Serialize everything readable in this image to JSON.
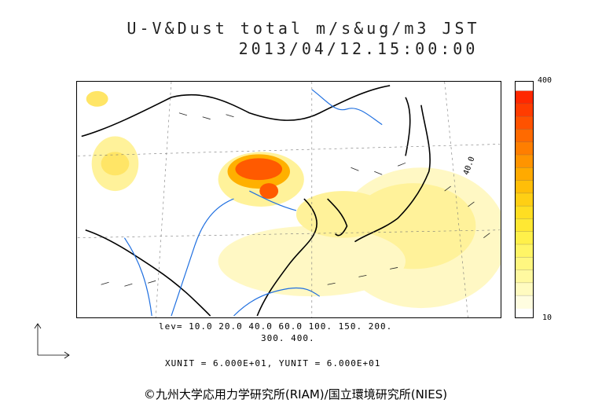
{
  "title_line1": "U-V&Dust total m/s&ug/m3 JST",
  "title_line2": "2013/04/12.15:00:00",
  "colorbar": {
    "max_label": "400",
    "min_label": "10",
    "colors": [
      "#fffde0",
      "#fffbc0",
      "#fff9a0",
      "#fff780",
      "#fff566",
      "#fff04a",
      "#ffe833",
      "#ffde22",
      "#ffcf14",
      "#ffbe08",
      "#ffaa00",
      "#ff9400",
      "#ff7e00",
      "#ff6a00",
      "#ff5200",
      "#ff3c00",
      "#ff2800"
    ]
  },
  "contour_label": "40.0",
  "levels_line1": "lev= 10.0 20.0 40.0 60.0 100. 150. 200.",
  "levels_line2": "300. 400.",
  "units_line": "XUNIT = 6.000E+01, YUNIT = 6.000E+01",
  "credit": "©九州大学応用力学研究所(RIAM)/国立環境研究所(NIES)",
  "colors": {
    "dust_low": "#fff6a8",
    "dust_high": "#ff4a00",
    "rivers": "#1f6fe0",
    "coast": "#000000"
  }
}
